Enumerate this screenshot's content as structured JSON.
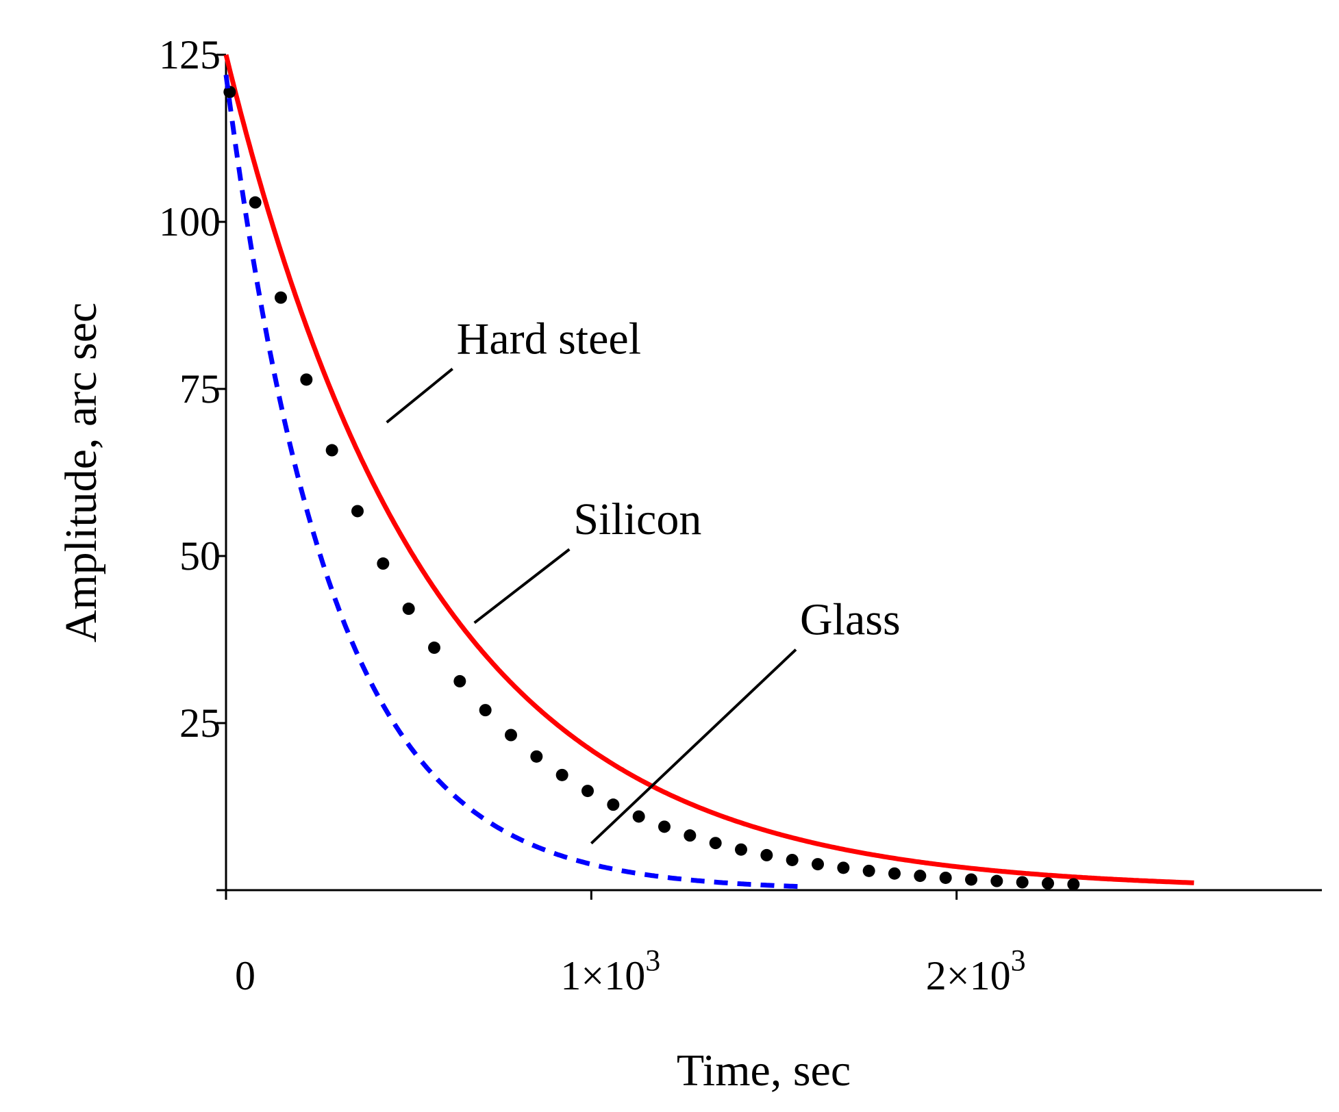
{
  "chart_data": {
    "type": "line",
    "title": "",
    "xlabel": "Time, sec",
    "ylabel": "Amplitude, arc sec",
    "xlim": [
      0,
      3000
    ],
    "ylim": [
      0,
      125
    ],
    "x_ticks": [
      {
        "value": 0,
        "label": "0",
        "mant": "",
        "sup": ""
      },
      {
        "value": 1000,
        "label": "1×10³",
        "mant": "1×10",
        "sup": "3"
      },
      {
        "value": 2000,
        "label": "2×10³",
        "mant": "2×10",
        "sup": "3"
      }
    ],
    "y_ticks": [
      {
        "value": 25,
        "label": "25"
      },
      {
        "value": 50,
        "label": "50"
      },
      {
        "value": 75,
        "label": "75"
      },
      {
        "value": 100,
        "label": "100"
      },
      {
        "value": 125,
        "label": "125"
      }
    ],
    "series": [
      {
        "name": "Hard steel",
        "style": "solid",
        "color": "#ff0000",
        "A0": 125,
        "tau": 560,
        "t_end": 2650
      },
      {
        "name": "Silicon",
        "style": "dotted",
        "color": "#000000",
        "A0": 122,
        "tau": 470,
        "t_end": 2350
      },
      {
        "name": "Glass",
        "style": "dashed",
        "color": "#0000ff",
        "A0": 122,
        "tau": 290,
        "t_end": 1570
      }
    ],
    "annotations": [
      {
        "text": "Hard steel",
        "series": "Hard steel",
        "arrow_from": [
          620,
          78
        ],
        "arrow_to": [
          440,
          70
        ]
      },
      {
        "text": "Silicon",
        "series": "Silicon",
        "arrow_from": [
          940,
          51
        ],
        "arrow_to": [
          680,
          40
        ]
      },
      {
        "text": "Glass",
        "series": "Glass",
        "arrow_from": [
          1560,
          36
        ],
        "arrow_to": [
          1000,
          7
        ]
      }
    ]
  }
}
